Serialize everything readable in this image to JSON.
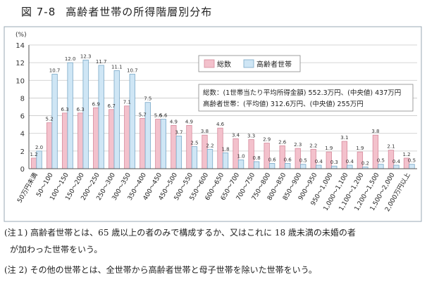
{
  "figure": {
    "number": "図 7-8",
    "title": "高齢者世帯の所得階層別分布"
  },
  "chart_data": {
    "type": "bar",
    "ylabel": "(%)",
    "ylim": [
      0,
      14
    ],
    "yticks": [
      "0",
      "2",
      "4",
      "6",
      "8",
      "10",
      "12",
      "14"
    ],
    "grid": true,
    "legend_position": "top-right",
    "categories": [
      "50万円未満",
      "50～100",
      "100～150",
      "150～200",
      "200～250",
      "250～300",
      "300～350",
      "350～400",
      "400～450",
      "450～500",
      "500～550",
      "550～600",
      "600～650",
      "650～700",
      "700～750",
      "750～800",
      "800～850",
      "850～900",
      "900～950",
      "950～1,000",
      "1,000～1,100",
      "1,100～1,200",
      "1,200～1,500",
      "1,500～2,000",
      "2,000万円以上"
    ],
    "series": [
      {
        "name": "総数",
        "color": "#f3c1cc",
        "values": [
          1.2,
          5.2,
          6.3,
          6.3,
          6.9,
          6.7,
          7.1,
          5.7,
          5.6,
          4.9,
          4.9,
          3.8,
          4.6,
          3.4,
          3.3,
          2.9,
          2.6,
          2.3,
          2.2,
          1.9,
          3.1,
          1.9,
          3.8,
          2.1,
          1.2
        ],
        "value_labels": [
          "1.2",
          "5.2",
          "6.3",
          "6.3",
          "6.9",
          "6.7",
          "7.1",
          "5.7",
          "5.6",
          "4.9",
          "4.9",
          "3.8",
          "4.6",
          "3.4",
          "3.3",
          "2.9",
          "2.6",
          "2.3",
          "2.2",
          "1.9",
          "3.1",
          "1.9",
          "3.8",
          "2.1",
          "1.2"
        ]
      },
      {
        "name": "高齢者世帯",
        "color": "#cfe6f5",
        "values": [
          2.0,
          10.7,
          12.0,
          12.3,
          11.7,
          11.1,
          10.7,
          7.5,
          5.6,
          3.7,
          2.5,
          2.2,
          1.8,
          1.0,
          0.8,
          0.6,
          0.6,
          0.5,
          0.4,
          0.3,
          0.4,
          0.2,
          0.5,
          0.4,
          0.5
        ],
        "value_labels": [
          "2.0",
          "10.7",
          "12.0",
          "12.3",
          "11.7",
          "11.1",
          "10.7",
          "7.5",
          "5.6",
          "3.7",
          "2.5",
          "2.2",
          "1.8",
          "1.0",
          "0.8",
          "0.6",
          "0.6",
          "0.5",
          "0.4",
          "0.3",
          "0.4",
          "0.2",
          "0.5",
          "0.4",
          "0.5"
        ]
      }
    ],
    "info_box": {
      "line1": "総数：(1世帯当たり平均所得金額) 552.3万円、(中央値) 437万円",
      "line2": "高齢者世帯：(平均値) 312.6万円、(中央値) 255万円"
    }
  },
  "notes": {
    "note1_line1": "(注１) 高齢者世帯とは、65 歳以上の者のみで構成するか、又はこれに 18 歳未満の未婚の者",
    "note1_line2": "が加わった世帯をいう。",
    "note2": "(注 2) その他の世帯とは、全世帯から高齢者世帯と母子世帯を除いた世帯をいう。"
  }
}
